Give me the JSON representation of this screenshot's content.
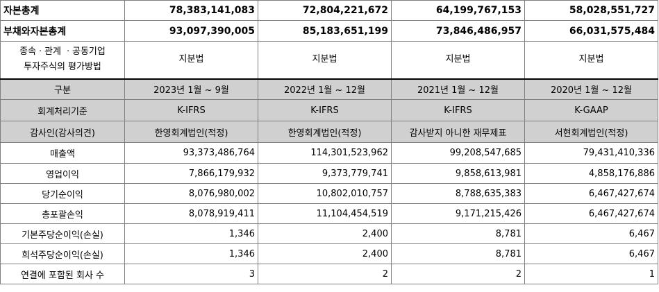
{
  "rows": {
    "total_equity": {
      "label": "자본총계",
      "values": [
        "78,383,141,083",
        "72,804,221,672",
        "64,199,767,153",
        "58,028,551,727"
      ]
    },
    "total_liab_equity": {
      "label": "부채와자본총계",
      "values": [
        "93,097,390,005",
        "85,183,651,199",
        "73,846,486,957",
        "66,031,575,484"
      ]
    },
    "valuation": {
      "label_line1": "종속ㆍ관계 ㆍ공동기업",
      "label_line2": "투자주식의 평가방법",
      "values": [
        "지분법",
        "지분법",
        "지분법",
        "지분법"
      ]
    },
    "header": {
      "label": "구분",
      "values": [
        "2023년 1월 ~ 9월",
        "2022년 1월 ~ 12월",
        "2021년 1월 ~ 12월",
        "2020년 1월 ~ 12월"
      ]
    },
    "standard": {
      "label": "회계처리기준",
      "values": [
        "K-IFRS",
        "K-IFRS",
        "K-IFRS",
        "K-GAAP"
      ]
    },
    "auditor": {
      "label": "감사인(감사의견)",
      "values": [
        "한영회계법인(적정)",
        "한영회계법인(적정)",
        "감사받지 아니한 재무제표",
        "서현회계법인(적정)"
      ]
    },
    "revenue": {
      "label": "매출액",
      "values": [
        "93,373,486,764",
        "114,301,523,962",
        "99,208,547,685",
        "79,431,410,336"
      ]
    },
    "op_income": {
      "label": "영업이익",
      "values": [
        "7,866,179,932",
        "9,373,779,741",
        "9,858,613,981",
        "4,858,176,886"
      ]
    },
    "net_income": {
      "label": "당기순이익",
      "values": [
        "8,076,980,002",
        "10,802,010,757",
        "8,788,635,383",
        "6,467,427,674"
      ]
    },
    "comp_income": {
      "label": "총포괄손익",
      "values": [
        "8,078,919,411",
        "11,104,454,519",
        "9,171,215,426",
        "6,467,427,674"
      ]
    },
    "basic_eps": {
      "label": "기본주당순이익(손실)",
      "values": [
        "1,346",
        "2,400",
        "8,781",
        "6,467"
      ]
    },
    "diluted_eps": {
      "label": "희석주당순이익(손실)",
      "values": [
        "1,346",
        "2,400",
        "8,781",
        "6,467"
      ]
    },
    "consolidated": {
      "label": "연결에 포함된 회사 수",
      "values": [
        "3",
        "2",
        "2",
        "1"
      ]
    }
  }
}
